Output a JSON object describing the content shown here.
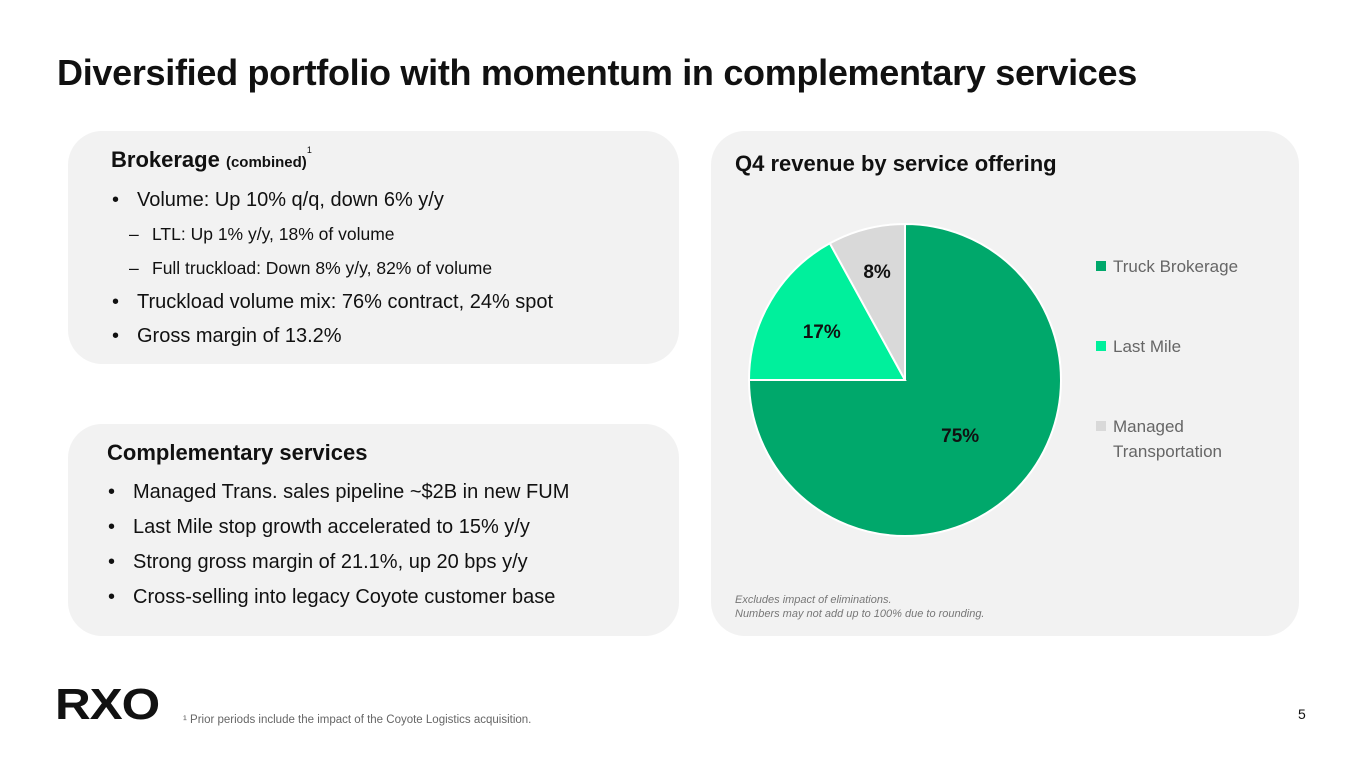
{
  "page": {
    "title": "Diversified portfolio with momentum in complementary services",
    "footnote": "¹ Prior periods include the impact of the Coyote Logistics acquisition.",
    "page_number": "5",
    "logo_text": "RXO"
  },
  "brokerage": {
    "heading": "Brokerage",
    "heading_small": "(combined)",
    "footnote_ref": "1",
    "items": [
      {
        "text": "Volume: Up 10% q/q, down 6% y/y"
      },
      {
        "text": "LTL: Up 1% y/y, 18% of volume"
      },
      {
        "text": "Full truckload: Down 8% y/y, 82% of volume"
      },
      {
        "text": "Truckload volume mix: 76% contract, 24% spot"
      },
      {
        "text": "Gross margin of 13.2%"
      }
    ]
  },
  "services": {
    "heading": "Complementary services",
    "items": [
      "Managed Trans. sales pipeline ~$2B in new FUM",
      "Last Mile stop growth accelerated to 15% y/y",
      "Strong gross margin of 21.1%, up 20 bps y/y",
      "Cross-selling into legacy Coyote customer base"
    ]
  },
  "chart_data": {
    "type": "pie",
    "title": "Q4 revenue by service offering",
    "categories": [
      "Truck Brokerage",
      "Last Mile",
      "Managed Transportation"
    ],
    "values": [
      75,
      17,
      8
    ],
    "labels": [
      "75%",
      "17%",
      "8%"
    ],
    "colors": [
      "#00a86b",
      "#00f09c",
      "#d9d9d9"
    ],
    "legend_position": "right",
    "notes": [
      "Excludes impact of eliminations.",
      "Numbers may not add up to 100% due to rounding."
    ]
  }
}
